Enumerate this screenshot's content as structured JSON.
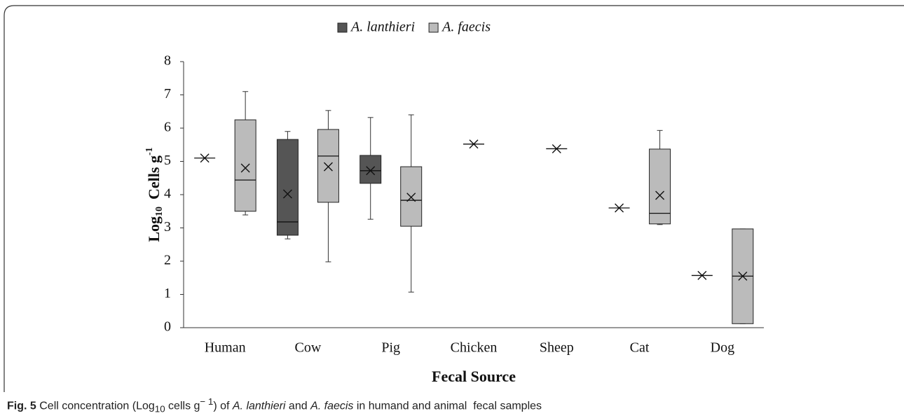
{
  "chart_data": {
    "type": "box",
    "x_label": "Fecal Source",
    "y_label_parts": [
      "Log",
      "10",
      "Cells g",
      "-1"
    ],
    "categories": [
      "Human",
      "Cow",
      "Pig",
      "Chicken",
      "Sheep",
      "Cat",
      "Dog"
    ],
    "series": [
      {
        "name": "A. lanthieri",
        "color": "#555555",
        "values": [
          {
            "median": 5.1,
            "mean": 5.1
          },
          {
            "min": 2.67,
            "q1": 2.78,
            "median": 3.18,
            "q3": 5.66,
            "max": 5.9,
            "mean": 4.02
          },
          {
            "min": 3.26,
            "q1": 4.34,
            "median": 4.72,
            "q3": 5.18,
            "max": 6.32,
            "mean": 4.72
          },
          {
            "median": 5.52,
            "mean": 5.52
          },
          {
            "median": 5.38,
            "mean": 5.38
          },
          {
            "median": 3.6,
            "mean": 3.6
          },
          {
            "median": 1.57,
            "mean": 1.57
          }
        ]
      },
      {
        "name": "A. faecis",
        "color": "#bbbbbb",
        "values": [
          {
            "min": 3.39,
            "q1": 3.5,
            "median": 4.44,
            "q3": 6.25,
            "max": 7.1,
            "mean": 4.8
          },
          {
            "min": 1.98,
            "q1": 3.77,
            "median": 5.16,
            "q3": 5.96,
            "max": 6.53,
            "mean": 4.84
          },
          {
            "min": 1.07,
            "q1": 3.05,
            "median": 3.83,
            "q3": 4.84,
            "max": 6.4,
            "mean": 3.92
          },
          null,
          null,
          {
            "min": 3.1,
            "q1": 3.12,
            "median": 3.44,
            "q3": 5.37,
            "max": 5.93,
            "mean": 3.98
          },
          {
            "min": 0.12,
            "q1": 0.12,
            "median": 1.55,
            "q3": 2.97,
            "max": 2.97,
            "mean": 1.55
          }
        ]
      }
    ],
    "ylim": [
      0,
      8
    ],
    "yticks": [
      0,
      1,
      2,
      3,
      4,
      5,
      6,
      7,
      8
    ],
    "legend": "top"
  },
  "caption": {
    "label": "Fig. 5",
    "parts": [
      "Cell concentration (Log",
      "10",
      " cells g",
      "− 1",
      ") of ",
      "A. lanthieri",
      " and ",
      "A. faecis",
      " in humand and animal  fecal samples"
    ]
  }
}
